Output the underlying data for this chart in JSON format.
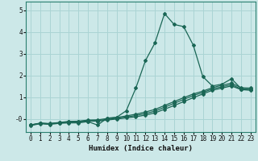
{
  "xlabel": "Humidex (Indice chaleur)",
  "xlim": [
    -0.5,
    23.5
  ],
  "ylim": [
    -0.6,
    5.4
  ],
  "xticks": [
    0,
    1,
    2,
    3,
    4,
    5,
    6,
    7,
    8,
    9,
    10,
    11,
    12,
    13,
    14,
    15,
    16,
    17,
    18,
    19,
    20,
    21,
    22,
    23
  ],
  "yticks": [
    0,
    1,
    2,
    3,
    4,
    5
  ],
  "ytick_labels": [
    "-0",
    "1",
    "2",
    "3",
    "4",
    "5"
  ],
  "background_color": "#cce8e8",
  "grid_color": "#aad4d4",
  "line_color": "#1a6655",
  "series1_x": [
    0,
    1,
    2,
    3,
    4,
    5,
    6,
    7,
    8,
    9,
    10,
    11,
    12,
    13,
    14,
    15,
    16,
    17,
    18,
    19,
    20,
    21,
    22,
    23
  ],
  "series1_y": [
    -0.3,
    -0.22,
    -0.25,
    -0.2,
    -0.18,
    -0.18,
    -0.12,
    -0.28,
    0.04,
    0.08,
    0.38,
    1.42,
    2.68,
    3.5,
    4.85,
    4.35,
    4.25,
    3.4,
    1.95,
    1.52,
    1.6,
    1.85,
    1.4,
    1.35
  ],
  "series2_x": [
    0,
    1,
    2,
    3,
    4,
    5,
    6,
    7,
    8,
    9,
    10,
    11,
    12,
    13,
    14,
    15,
    16,
    17,
    18,
    19,
    20,
    21,
    22,
    23
  ],
  "series2_y": [
    -0.28,
    -0.2,
    -0.22,
    -0.18,
    -0.15,
    -0.14,
    -0.1,
    -0.1,
    -0.05,
    0.0,
    0.05,
    0.1,
    0.18,
    0.28,
    0.45,
    0.62,
    0.8,
    0.98,
    1.15,
    1.32,
    1.42,
    1.52,
    1.35,
    1.32
  ],
  "series3_x": [
    0,
    1,
    2,
    3,
    4,
    5,
    6,
    7,
    8,
    9,
    10,
    11,
    12,
    13,
    14,
    15,
    16,
    17,
    18,
    19,
    20,
    21,
    22,
    23
  ],
  "series3_y": [
    -0.28,
    -0.2,
    -0.22,
    -0.17,
    -0.13,
    -0.12,
    -0.08,
    -0.07,
    -0.02,
    0.03,
    0.09,
    0.16,
    0.25,
    0.36,
    0.54,
    0.72,
    0.9,
    1.08,
    1.22,
    1.38,
    1.48,
    1.58,
    1.38,
    1.35
  ],
  "series4_x": [
    0,
    1,
    2,
    3,
    4,
    5,
    6,
    7,
    8,
    9,
    10,
    11,
    12,
    13,
    14,
    15,
    16,
    17,
    18,
    19,
    20,
    21,
    22,
    23
  ],
  "series4_y": [
    -0.27,
    -0.19,
    -0.21,
    -0.16,
    -0.11,
    -0.1,
    -0.05,
    -0.04,
    0.02,
    0.07,
    0.14,
    0.22,
    0.32,
    0.44,
    0.62,
    0.8,
    0.98,
    1.15,
    1.28,
    1.44,
    1.55,
    1.65,
    1.44,
    1.42
  ]
}
